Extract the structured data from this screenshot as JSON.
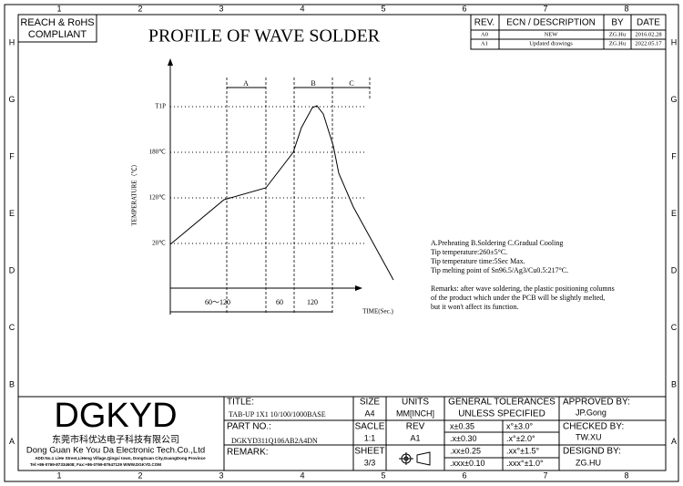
{
  "compliance": [
    "REACH & RoHS",
    "COMPLIANT"
  ],
  "title": "PROFILE OF WAVE SOLDER",
  "grid": {
    "columns": [
      "1",
      "2",
      "3",
      "4",
      "5",
      "6",
      "7",
      "8"
    ],
    "rows": [
      "H",
      "G",
      "F",
      "E",
      "D",
      "C",
      "B",
      "A"
    ]
  },
  "revisions": {
    "header": [
      "REV.",
      "ECN / DESCRIPTION",
      "BY",
      "DATE"
    ],
    "rows": [
      [
        "A0",
        "NEW",
        "ZG.Hu",
        "2016.02.28"
      ],
      [
        "A1",
        "Updated drawings",
        "ZG.Hu",
        "2022.05.17"
      ]
    ]
  },
  "profile": {
    "y_label": "TEMPERATURE（℃）",
    "x_label": "TIME(Sec.)",
    "temperature_levels": [
      "T1P",
      "180℃",
      "120℃",
      "20℃"
    ],
    "zones": [
      "A",
      "B",
      "C"
    ],
    "durations": [
      "60～120",
      "60",
      "120"
    ]
  },
  "notes": {
    "lines": [
      "A.Preheating  B.Soldering  C.Gradual Cooling",
      "Tip temperature:260±5°C.",
      "Tip temperature time:5Sec Max.",
      "Tip melting point of Sn96.5/Ag3/Cu0.5:217°C."
    ],
    "remarks": [
      "Remarks: after wave soldering, the plastic positioning columns",
      "of the product  which under the PCB will be slightly melted,",
      "but it won't affect its function."
    ]
  },
  "company": {
    "logo": "DGKYD",
    "name_cn": "东莞市科优达电子科技有限公司",
    "name_en": "Dong Guan Ke You Da Electronic Tech.Co.,Ltd",
    "address": "ADD:No.1 LiHe Street,LiHeng Village,Qingxi town, DongGuan City,GuangDong Province",
    "contact": "Tel:+86-0769-87334608; Fax:+86-0769-87647129  WWW.DGKYD.COM"
  },
  "title_block": {
    "title_label": "TITLE:",
    "title": "TAB-UP 1X1 10/100/1000BASE",
    "part_label": "PART NO.:",
    "part": "DGKYD311Q106AB2A4DN",
    "remark_label": "REMARK:",
    "size_label": "SIZE",
    "size": "A4",
    "units_label": "UNITS",
    "units": "MM[INCH]",
    "scale_label": "SACLE",
    "scale": "1:1",
    "rev_label": "REV",
    "rev": "A1",
    "sheet_label": "SHEET",
    "sheet": "3/3",
    "tolerances": {
      "header": [
        "GENERAL TOLERANCES",
        "UNLESS SPECIFIED"
      ],
      "rows": [
        [
          "x±0.35",
          "x°±3.0°"
        ],
        [
          ".x±0.30",
          ".x°±2.0°"
        ],
        [
          ".xx±0.25",
          ".xx°±1.5°"
        ],
        [
          ".xxx±0.10",
          ".xxx°±1.0°"
        ]
      ]
    },
    "approved_label": "APPROVED BY:",
    "approved": "JP.Gong",
    "checked_label": "CHECKED BY:",
    "checked": "TW.XU",
    "designed_label": "DESIGND BY:",
    "designed": "ZG.HU"
  }
}
